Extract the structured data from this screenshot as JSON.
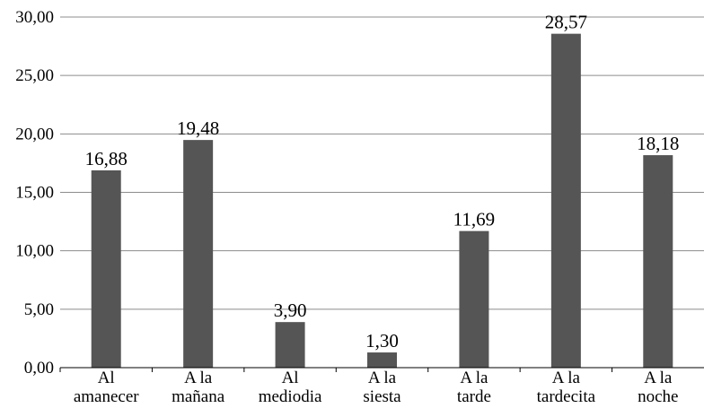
{
  "chart_data": {
    "type": "bar",
    "categories": [
      [
        "Al",
        "amanecer"
      ],
      [
        "A la",
        "mañana"
      ],
      [
        "Al",
        "mediodia"
      ],
      [
        "A la",
        "siesta"
      ],
      [
        "A la",
        "tarde"
      ],
      [
        "A la",
        "tardecita"
      ],
      [
        "A la",
        "noche"
      ]
    ],
    "values": [
      16.88,
      19.48,
      3.9,
      1.3,
      11.69,
      28.57,
      18.18
    ],
    "data_labels": [
      "16,88",
      "19,48",
      "3,90",
      "1,30",
      "11,69",
      "28,57",
      "18,18"
    ],
    "y_ticks": [
      "0,00",
      "5,00",
      "10,00",
      "15,00",
      "20,00",
      "25,00",
      "30,00"
    ],
    "ylim": [
      0,
      30
    ],
    "grid": true,
    "bar_color": "#555555",
    "grid_color": "#8c8c8c"
  }
}
